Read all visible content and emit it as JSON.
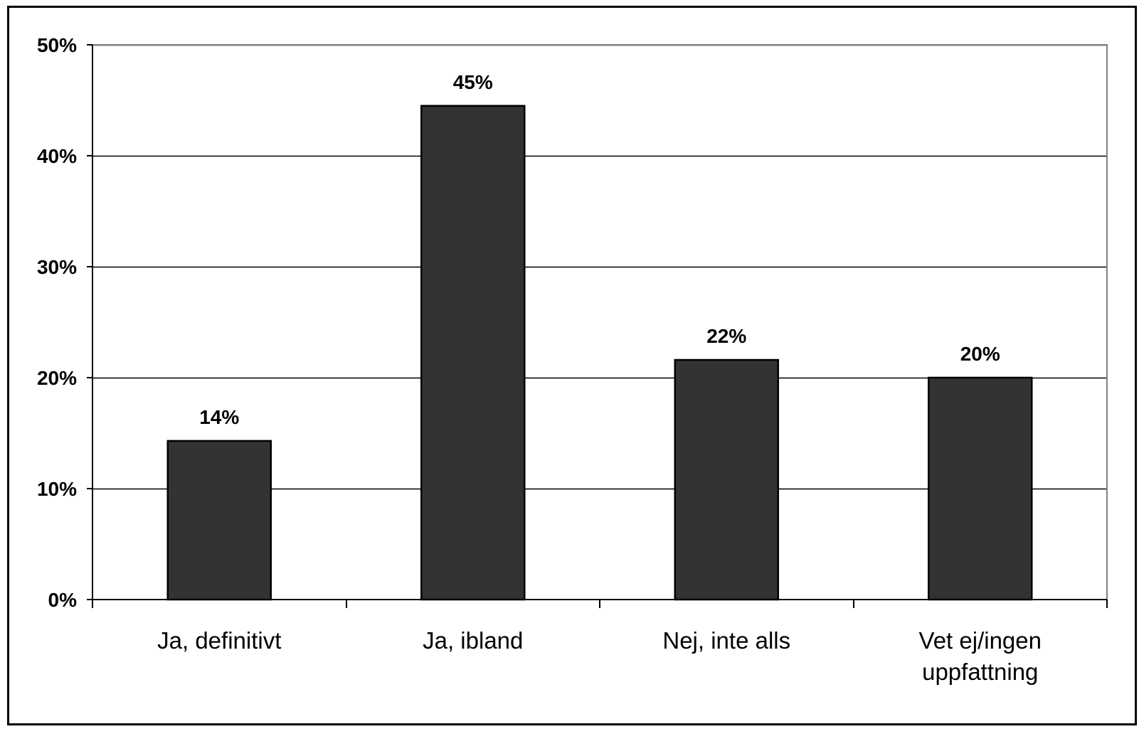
{
  "chart_data": {
    "type": "bar",
    "title": "",
    "xlabel": "",
    "ylabel": "",
    "categories": [
      [
        "Ja, definitivt"
      ],
      [
        "Ja, ibland"
      ],
      [
        "Nej, inte alls"
      ],
      [
        "Vet ej/ingen",
        "uppfattning"
      ]
    ],
    "values": [
      14.3,
      44.5,
      21.6,
      20.0
    ],
    "data_labels": [
      "14%",
      "45%",
      "22%",
      "20%"
    ],
    "ylim": [
      0,
      50
    ],
    "yticks": [
      0,
      10,
      20,
      30,
      40,
      50
    ],
    "ytick_labels": [
      "0%",
      "10%",
      "20%",
      "30%",
      "40%",
      "50%"
    ],
    "grid": true,
    "legend": "none",
    "colors": {
      "bar": "#333333",
      "bar_stroke": "#000000",
      "grid": "#000000",
      "plot_border": "#808080",
      "background": "#ffffff"
    }
  }
}
